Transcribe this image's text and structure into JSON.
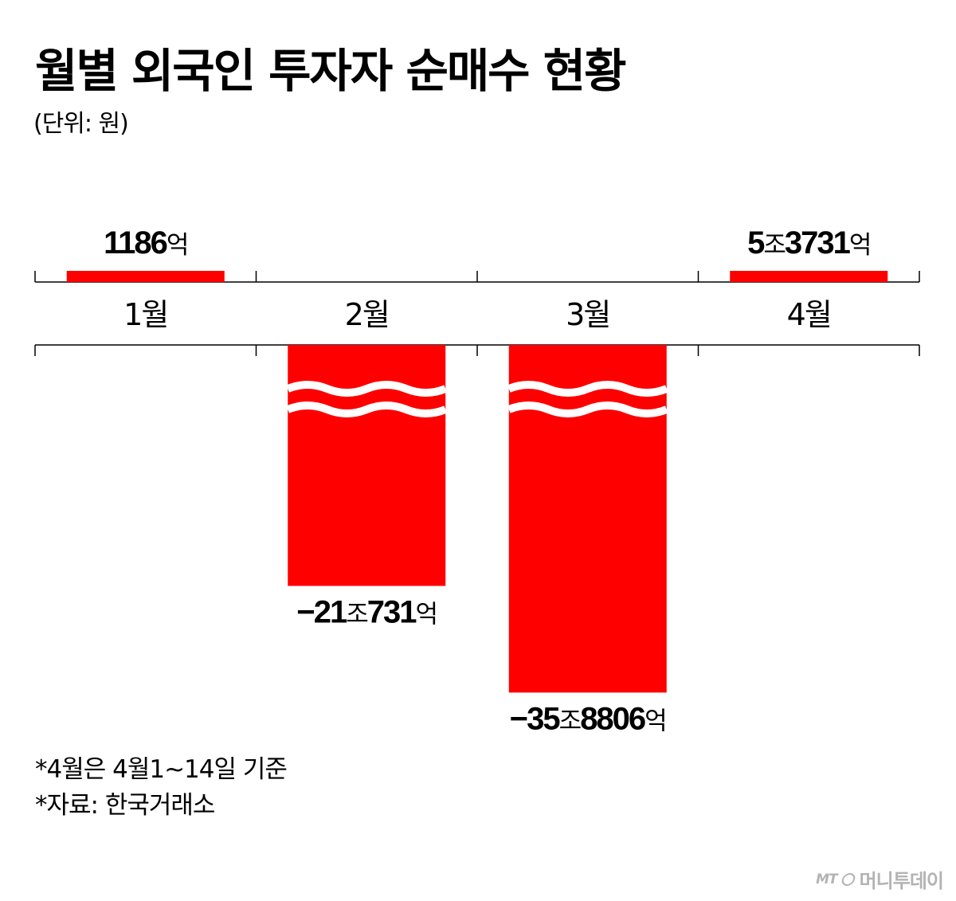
{
  "title": "월별 외국인 투자자 순매수 현황",
  "unit_label": "(단위: 원)",
  "notes": [
    "*4월은 4월1~14일 기준",
    "*자료: 한국거래소"
  ],
  "source": {
    "mark": "MT",
    "name": "머니투데이"
  },
  "colors": {
    "bar": "#ff0000",
    "axis": "#000000",
    "break": "#ffffff"
  },
  "chart_data": {
    "type": "bar",
    "title": "월별 외국인 투자자 순매수 현황",
    "unit": "원",
    "categories": [
      "1월",
      "2월",
      "3월",
      "4월"
    ],
    "values": [
      118600000000,
      -21073100000000,
      -35880600000000,
      5373100000000
    ],
    "data_labels": [
      {
        "num1": "1186",
        "unit1": "억",
        "num2": "",
        "unit2": ""
      },
      {
        "num1": "−21",
        "unit1": "조",
        "num2": "731",
        "unit2": "억"
      },
      {
        "num1": "−35",
        "unit1": "조",
        "num2": "8806",
        "unit2": "억"
      },
      {
        "num1": "5",
        "unit1": "조",
        "num2": "3731",
        "unit2": "억"
      }
    ],
    "axis_break": "negative bars truncated with wavy break marks",
    "grid": false,
    "legend": "none"
  }
}
